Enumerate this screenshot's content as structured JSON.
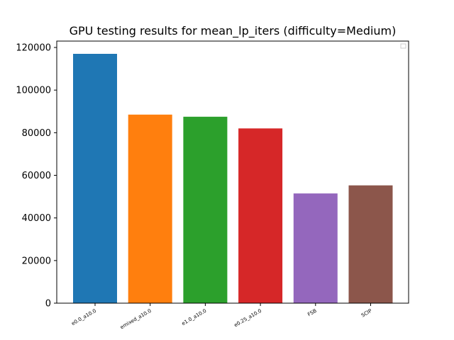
{
  "chart_data": {
    "type": "bar",
    "title": "GPU testing results for mean_lp_iters (difficulty=Medium)",
    "xlabel": "",
    "ylabel": "",
    "categories": [
      "e0.0_a10.0",
      "emixed_a10.0",
      "e1.0_a10.0",
      "e0.25_a10.0",
      "FSB",
      "SCIP"
    ],
    "values": [
      117000,
      88500,
      87500,
      82000,
      51500,
      55300
    ],
    "colors": [
      "#1f77b4",
      "#ff7f0e",
      "#2ca02c",
      "#d62728",
      "#9467bd",
      "#8c564b"
    ],
    "ylim": [
      0,
      123000
    ],
    "yticks": [
      0,
      20000,
      40000,
      60000,
      80000,
      100000,
      120000
    ],
    "ytick_labels": [
      "0",
      "20000",
      "40000",
      "60000",
      "80000",
      "100000",
      "120000"
    ],
    "grid": false,
    "legend": "top-right (empty)"
  }
}
